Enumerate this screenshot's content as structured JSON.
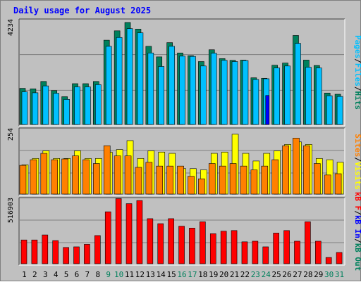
{
  "title": "Daily usage for August 2025",
  "colors": {
    "background": "#c0c0c0",
    "plot_bg": "#c0c0c0",
    "hits": "#00805c",
    "files": "#00c0ff",
    "pages": "#0000ff",
    "visits": "#ffff00",
    "sites": "#ff8000",
    "kbf": "#ff0000",
    "kbin": "#0000ff",
    "kbout": "#00805c",
    "title": "#0000ff",
    "weekend": "#00805c",
    "weekday": "#000000"
  },
  "chart_data": [
    {
      "type": "bar",
      "panel": "hits-files-pages",
      "ymax_label": "4234",
      "ylim": [
        0,
        4234
      ],
      "side_labels": [
        "Pages",
        "/",
        "Files",
        "/",
        "Hits"
      ],
      "categories": [
        "1",
        "2",
        "3",
        "4",
        "5",
        "6",
        "7",
        "8",
        "9",
        "10",
        "11",
        "12",
        "13",
        "14",
        "15",
        "16",
        "17",
        "18",
        "19",
        "20",
        "21",
        "22",
        "23",
        "24",
        "25",
        "26",
        "27",
        "28",
        "29",
        "30",
        "31"
      ],
      "weekend_days": [
        "9",
        "10",
        "16",
        "17",
        "23",
        "24",
        "30",
        "31"
      ],
      "series": [
        {
          "name": "Hits",
          "values": [
            1470,
            1450,
            1750,
            1380,
            1130,
            1660,
            1660,
            1750,
            3430,
            3810,
            4150,
            3880,
            3180,
            2750,
            3330,
            2910,
            2800,
            2560,
            3040,
            2680,
            2610,
            2620,
            1900,
            1880,
            2410,
            2500,
            3620,
            2620,
            2400,
            1280,
            1230
          ]
        },
        {
          "name": "Files",
          "values": [
            1330,
            1290,
            1570,
            1270,
            1020,
            1530,
            1530,
            1620,
            3180,
            3540,
            3900,
            3730,
            2910,
            2360,
            3180,
            2780,
            2770,
            2380,
            2900,
            2610,
            2560,
            2600,
            1830,
            1860,
            2300,
            2380,
            3300,
            2330,
            2300,
            1170,
            1140
          ]
        },
        {
          "name": "Pages",
          "values": [
            1330,
            1290,
            1570,
            1270,
            1020,
            1530,
            1530,
            1620,
            3180,
            3540,
            3900,
            3730,
            2910,
            2360,
            3180,
            2780,
            2770,
            2380,
            2900,
            2610,
            2560,
            2600,
            1830,
            1180,
            2300,
            2380,
            3300,
            2330,
            2300,
            1170,
            1140
          ]
        }
      ]
    },
    {
      "type": "bar",
      "panel": "visits-sites",
      "ymax_label": "254",
      "ylim": [
        0,
        254
      ],
      "side_labels": [
        "Sites",
        "/",
        "Visits"
      ],
      "categories": [
        "1",
        "2",
        "3",
        "4",
        "5",
        "6",
        "7",
        "8",
        "9",
        "10",
        "11",
        "12",
        "13",
        "14",
        "15",
        "16",
        "17",
        "18",
        "19",
        "20",
        "21",
        "22",
        "23",
        "24",
        "25",
        "26",
        "27",
        "28",
        "29",
        "30",
        "31"
      ],
      "series": [
        {
          "name": "Visits",
          "values": [
            115,
            140,
            170,
            140,
            140,
            170,
            140,
            140,
            165,
            175,
            210,
            140,
            170,
            165,
            160,
            100,
            100,
            95,
            160,
            165,
            235,
            160,
            130,
            160,
            170,
            195,
            205,
            195,
            140,
            135,
            125
          ]
        },
        {
          "name": "Sites",
          "values": [
            113,
            135,
            160,
            135,
            138,
            150,
            135,
            120,
            190,
            150,
            150,
            105,
            125,
            110,
            110,
            110,
            70,
            60,
            120,
            110,
            120,
            110,
            95,
            110,
            135,
            190,
            220,
            190,
            120,
            75,
            80
          ]
        }
      ]
    },
    {
      "type": "bar",
      "panel": "kbytes",
      "ymax_label": "516903",
      "ylim": [
        0,
        516903
      ],
      "side_labels": [
        "kB F",
        "/",
        "kB In",
        "/",
        "kB Out"
      ],
      "categories": [
        "1",
        "2",
        "3",
        "4",
        "5",
        "6",
        "7",
        "8",
        "9",
        "10",
        "11",
        "12",
        "13",
        "14",
        "15",
        "16",
        "17",
        "18",
        "19",
        "20",
        "21",
        "22",
        "23",
        "24",
        "25",
        "26",
        "27",
        "28",
        "29",
        "30",
        "31"
      ],
      "series": [
        {
          "name": "kB F",
          "values": [
            190000,
            190000,
            230000,
            185000,
            130000,
            135000,
            155000,
            225000,
            415000,
            520000,
            480000,
            505000,
            360000,
            320000,
            360000,
            300000,
            285000,
            335000,
            240000,
            260000,
            265000,
            175000,
            180000,
            135000,
            245000,
            265000,
            180000,
            335000,
            180000,
            50000,
            90000
          ]
        }
      ]
    }
  ]
}
